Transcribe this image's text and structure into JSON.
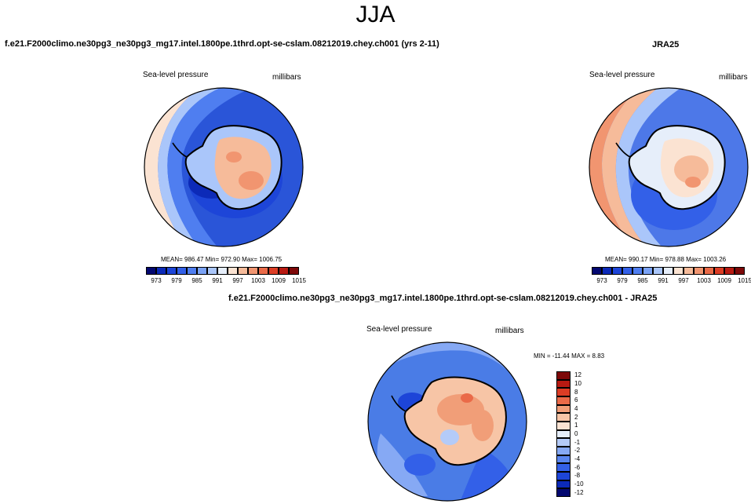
{
  "header": {
    "season": "JJA"
  },
  "panels": {
    "model": {
      "title": "f.e21.F2000climo.ne30pg3_ne30pg3_mg17.intel.1800pe.1thrd.opt-se-cslam.08212019.chey.ch001 (yrs 2-11)",
      "variable": "Sea-level pressure",
      "units": "millibars",
      "stats": "MEAN= 986.47   Min= 972.90   Max= 1006.75"
    },
    "obs": {
      "title": "JRA25",
      "variable": "Sea-level pressure",
      "units": "millibars",
      "stats": "MEAN= 990.17   Min= 978.88   Max= 1003.26"
    },
    "diff": {
      "title": "f.e21.F2000climo.ne30pg3_ne30pg3_mg17.intel.1800pe.1thrd.opt-se-cslam.08212019.chey.ch001 - JRA25",
      "variable": "Sea-level pressure",
      "units": "millibars",
      "stats": "MIN = -11.44  MAX =   8.83"
    }
  },
  "colorbars": {
    "absolute": {
      "colors": [
        "#030870",
        "#0c2ab8",
        "#1d45d8",
        "#3360e8",
        "#4f7ef0",
        "#7aa2f5",
        "#aac6fa",
        "#e6eefa",
        "#fbe3d2",
        "#f6bb9a",
        "#f19570",
        "#ea6a48",
        "#dc3d25",
        "#b81a12",
        "#7d0808"
      ],
      "labels": [
        "973",
        "979",
        "985",
        "991",
        "997",
        "1003",
        "1009",
        "1015"
      ]
    },
    "difference": {
      "colors": [
        "#030870",
        "#0c2ab8",
        "#1d45d8",
        "#3360e8",
        "#5a86ef",
        "#86a9f4",
        "#b4cbf8",
        "#e6eefa",
        "#fbe3d2",
        "#f7c5a6",
        "#f19e78",
        "#ea6a48",
        "#dc3d25",
        "#b81a12",
        "#7d0808"
      ],
      "labels": [
        "12",
        "10",
        "8",
        "6",
        "4",
        "2",
        "1",
        "0",
        "-1",
        "-2",
        "-4",
        "-6",
        "-8",
        "-10",
        "-12"
      ]
    }
  },
  "colors": {
    "coastline": "#000000",
    "ocean_low": "#2a52d6",
    "ocean_mid": "#4d7ae8",
    "continent_high": "#f0a07c",
    "diff_ocean": "#4a7ce6",
    "diff_land": "#f7b596"
  }
}
